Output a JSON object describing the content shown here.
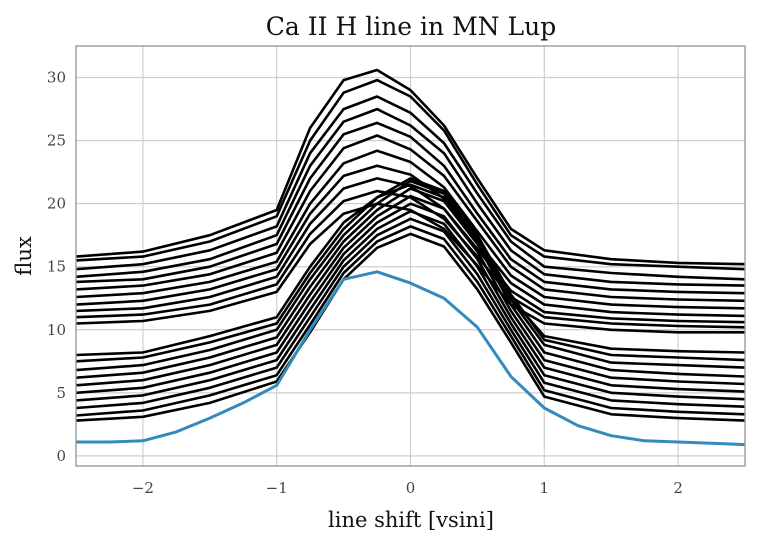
{
  "chart_data": {
    "type": "line",
    "title": "Ca II H line in MN Lup",
    "xlabel": "line shift [vsini]",
    "ylabel": "flux",
    "xlim": [
      -2.5,
      2.5
    ],
    "ylim": [
      -0.8,
      32.5
    ],
    "xticks": [
      -2,
      -1,
      0,
      1,
      2
    ],
    "xtick_labels": [
      "−2",
      "−1",
      "0",
      "1",
      "2"
    ],
    "yticks": [
      0,
      5,
      10,
      15,
      20,
      25,
      30
    ],
    "ytick_labels": [
      "0",
      "5",
      "10",
      "15",
      "20",
      "25",
      "30"
    ],
    "grid": true,
    "line_colors": {
      "spectra": "#000000",
      "reference": "#348abd"
    },
    "reference_series": {
      "x": [
        -2.5,
        -2.25,
        -2.0,
        -1.75,
        -1.5,
        -1.25,
        -1.0,
        -0.75,
        -0.5,
        -0.25,
        0.0,
        0.25,
        0.5,
        0.75,
        1.0,
        1.25,
        1.5,
        1.75,
        2.0,
        2.25,
        2.5
      ],
      "y": [
        1.1,
        1.1,
        1.2,
        1.9,
        3.0,
        4.2,
        5.6,
        10.0,
        14.0,
        14.6,
        13.7,
        12.5,
        10.2,
        6.3,
        3.8,
        2.4,
        1.6,
        1.2,
        1.1,
        1.0,
        0.9
      ]
    },
    "spectra": [
      {
        "x": [
          -2.5,
          -2.0,
          -1.5,
          -1.0,
          -0.75,
          -0.5,
          -0.25,
          0.0,
          0.25,
          0.5,
          0.75,
          1.0,
          1.5,
          2.0,
          2.5
        ],
        "y": [
          15.8,
          16.2,
          17.5,
          19.5,
          26.0,
          29.8,
          30.6,
          29.0,
          26.2,
          22.0,
          18.0,
          16.3,
          15.6,
          15.3,
          15.2
        ]
      },
      {
        "x": [
          -2.5,
          -2.0,
          -1.5,
          -1.0,
          -0.75,
          -0.5,
          -0.25,
          0.0,
          0.25,
          0.5,
          0.75,
          1.0,
          1.5,
          2.0,
          2.5
        ],
        "y": [
          15.5,
          15.8,
          17.0,
          19.0,
          25.0,
          28.8,
          29.8,
          28.5,
          25.8,
          21.5,
          17.5,
          15.8,
          15.2,
          15.0,
          14.8
        ]
      },
      {
        "x": [
          -2.5,
          -2.0,
          -1.5,
          -1.0,
          -0.75,
          -0.5,
          -0.25,
          0.0,
          0.25,
          0.5,
          0.75,
          1.0,
          1.5,
          2.0,
          2.5
        ],
        "y": [
          14.8,
          15.2,
          16.3,
          18.2,
          24.0,
          27.5,
          28.5,
          27.2,
          24.8,
          20.8,
          17.0,
          15.0,
          14.5,
          14.2,
          14.0
        ]
      },
      {
        "x": [
          -2.5,
          -2.0,
          -1.5,
          -1.0,
          -0.75,
          -0.5,
          -0.25,
          0.0,
          0.25,
          0.5,
          0.75,
          1.0,
          1.5,
          2.0,
          2.5
        ],
        "y": [
          14.2,
          14.6,
          15.6,
          17.5,
          23.0,
          26.5,
          27.5,
          26.2,
          24.0,
          20.0,
          16.3,
          14.4,
          13.8,
          13.6,
          13.5
        ]
      },
      {
        "x": [
          -2.5,
          -2.0,
          -1.5,
          -1.0,
          -0.75,
          -0.5,
          -0.25,
          0.0,
          0.25,
          0.5,
          0.75,
          1.0,
          1.5,
          2.0,
          2.5
        ],
        "y": [
          13.8,
          14.0,
          15.0,
          16.8,
          22.0,
          25.5,
          26.4,
          25.3,
          23.0,
          19.2,
          15.6,
          13.8,
          13.2,
          13.0,
          12.9
        ]
      },
      {
        "x": [
          -2.5,
          -2.0,
          -1.5,
          -1.0,
          -0.75,
          -0.5,
          -0.25,
          0.0,
          0.25,
          0.5,
          0.75,
          1.0,
          1.5,
          2.0,
          2.5
        ],
        "y": [
          13.2,
          13.5,
          14.4,
          16.1,
          21.0,
          24.4,
          25.4,
          24.3,
          22.2,
          18.6,
          15.0,
          13.2,
          12.6,
          12.4,
          12.3
        ]
      },
      {
        "x": [
          -2.5,
          -2.0,
          -1.5,
          -1.0,
          -0.75,
          -0.5,
          -0.25,
          0.0,
          0.25,
          0.5,
          0.75,
          1.0,
          1.5,
          2.0,
          2.5
        ],
        "y": [
          12.6,
          12.9,
          13.8,
          15.4,
          20.0,
          23.2,
          24.2,
          23.3,
          21.3,
          17.8,
          14.3,
          12.6,
          12.0,
          11.8,
          11.7
        ]
      },
      {
        "x": [
          -2.5,
          -2.0,
          -1.5,
          -1.0,
          -0.75,
          -0.5,
          -0.25,
          0.0,
          0.25,
          0.5,
          0.75,
          1.0,
          1.5,
          2.0,
          2.5
        ],
        "y": [
          12.0,
          12.3,
          13.2,
          14.8,
          19.2,
          22.2,
          23.0,
          22.3,
          20.4,
          17.0,
          13.7,
          12.0,
          11.4,
          11.2,
          11.1
        ]
      },
      {
        "x": [
          -2.5,
          -2.0,
          -1.5,
          -1.0,
          -0.75,
          -0.5,
          -0.25,
          0.0,
          0.25,
          0.5,
          0.75,
          1.0,
          1.5,
          2.0,
          2.5
        ],
        "y": [
          11.5,
          11.7,
          12.6,
          14.2,
          18.4,
          21.2,
          22.0,
          21.4,
          19.6,
          16.4,
          13.1,
          11.4,
          10.9,
          10.7,
          10.6
        ]
      },
      {
        "x": [
          -2.5,
          -2.0,
          -1.5,
          -1.0,
          -0.75,
          -0.5,
          -0.25,
          0.0,
          0.25,
          0.5,
          0.75,
          1.0,
          1.5,
          2.0,
          2.5
        ],
        "y": [
          11.0,
          11.2,
          12.0,
          13.6,
          17.6,
          20.2,
          21.0,
          20.5,
          18.8,
          15.8,
          12.6,
          11.0,
          10.5,
          10.3,
          10.2
        ]
      },
      {
        "x": [
          -2.5,
          -2.0,
          -1.5,
          -1.0,
          -0.75,
          -0.5,
          -0.25,
          0.0,
          0.25,
          0.5,
          0.75,
          1.0,
          1.5,
          2.0,
          2.5
        ],
        "y": [
          10.5,
          10.7,
          11.5,
          13.0,
          16.8,
          19.2,
          20.0,
          19.5,
          18.0,
          15.1,
          12.0,
          10.5,
          10.0,
          9.8,
          9.8
        ]
      },
      {
        "x": [
          -2.5,
          -2.0,
          -1.5,
          -1.0,
          -0.75,
          -0.5,
          -0.25,
          0.0,
          0.25,
          0.5,
          0.75,
          1.0,
          1.5,
          2.0,
          2.5
        ],
        "y": [
          8.0,
          8.2,
          9.5,
          11.0,
          15.0,
          18.5,
          20.5,
          21.5,
          20.5,
          17.0,
          12.5,
          9.5,
          8.5,
          8.3,
          8.2
        ]
      },
      {
        "x": [
          -2.5,
          -2.0,
          -1.5,
          -1.0,
          -0.75,
          -0.5,
          -0.25,
          0.0,
          0.25,
          0.5,
          0.75,
          1.0,
          1.5,
          2.0,
          2.5
        ],
        "y": [
          7.5,
          7.8,
          9.0,
          10.5,
          14.5,
          18.0,
          20.5,
          22.0,
          21.0,
          17.5,
          12.8,
          9.2,
          8.0,
          7.8,
          7.6
        ]
      },
      {
        "x": [
          -2.5,
          -2.0,
          -1.5,
          -1.0,
          -0.75,
          -0.5,
          -0.25,
          0.0,
          0.25,
          0.5,
          0.75,
          1.0,
          1.5,
          2.0,
          2.5
        ],
        "y": [
          6.8,
          7.2,
          8.4,
          10.0,
          14.0,
          17.5,
          20.0,
          21.8,
          20.8,
          17.2,
          12.4,
          8.8,
          7.4,
          7.2,
          7.0
        ]
      },
      {
        "x": [
          -2.5,
          -2.0,
          -1.5,
          -1.0,
          -0.75,
          -0.5,
          -0.25,
          0.0,
          0.25,
          0.5,
          0.75,
          1.0,
          1.5,
          2.0,
          2.5
        ],
        "y": [
          6.2,
          6.6,
          7.8,
          9.4,
          13.4,
          17.0,
          19.5,
          21.2,
          20.2,
          16.8,
          12.0,
          8.2,
          6.8,
          6.5,
          6.3
        ]
      },
      {
        "x": [
          -2.5,
          -2.0,
          -1.5,
          -1.0,
          -0.75,
          -0.5,
          -0.25,
          0.0,
          0.25,
          0.5,
          0.75,
          1.0,
          1.5,
          2.0,
          2.5
        ],
        "y": [
          5.6,
          6.0,
          7.2,
          8.8,
          12.8,
          16.5,
          19.0,
          20.6,
          19.6,
          16.2,
          11.5,
          7.6,
          6.2,
          5.9,
          5.7
        ]
      },
      {
        "x": [
          -2.5,
          -2.0,
          -1.5,
          -1.0,
          -0.75,
          -0.5,
          -0.25,
          0.0,
          0.25,
          0.5,
          0.75,
          1.0,
          1.5,
          2.0,
          2.5
        ],
        "y": [
          5.0,
          5.4,
          6.6,
          8.2,
          12.2,
          16.0,
          18.5,
          20.0,
          19.0,
          15.6,
          11.0,
          7.0,
          5.6,
          5.3,
          5.1
        ]
      },
      {
        "x": [
          -2.5,
          -2.0,
          -1.5,
          -1.0,
          -0.75,
          -0.5,
          -0.25,
          0.0,
          0.25,
          0.5,
          0.75,
          1.0,
          1.5,
          2.0,
          2.5
        ],
        "y": [
          4.4,
          4.8,
          6.0,
          7.6,
          11.6,
          15.5,
          18.0,
          19.4,
          18.4,
          15.0,
          10.5,
          6.4,
          5.0,
          4.7,
          4.5
        ]
      },
      {
        "x": [
          -2.5,
          -2.0,
          -1.5,
          -1.0,
          -0.75,
          -0.5,
          -0.25,
          0.0,
          0.25,
          0.5,
          0.75,
          1.0,
          1.5,
          2.0,
          2.5
        ],
        "y": [
          3.8,
          4.2,
          5.4,
          7.0,
          11.0,
          15.0,
          17.5,
          18.8,
          17.8,
          14.4,
          10.0,
          5.8,
          4.4,
          4.1,
          3.9
        ]
      },
      {
        "x": [
          -2.5,
          -2.0,
          -1.5,
          -1.0,
          -0.75,
          -0.5,
          -0.25,
          0.0,
          0.25,
          0.5,
          0.75,
          1.0,
          1.5,
          2.0,
          2.5
        ],
        "y": [
          3.2,
          3.6,
          4.8,
          6.4,
          10.4,
          14.5,
          17.0,
          18.2,
          17.2,
          13.8,
          9.5,
          5.2,
          3.8,
          3.5,
          3.3
        ]
      },
      {
        "x": [
          -2.5,
          -2.0,
          -1.5,
          -1.0,
          -0.75,
          -0.5,
          -0.25,
          0.0,
          0.25,
          0.5,
          0.75,
          1.0,
          1.5,
          2.0,
          2.5
        ],
        "y": [
          2.8,
          3.1,
          4.2,
          5.9,
          9.8,
          14.0,
          16.5,
          17.6,
          16.6,
          13.2,
          9.0,
          4.7,
          3.3,
          3.0,
          2.8
        ]
      }
    ]
  }
}
